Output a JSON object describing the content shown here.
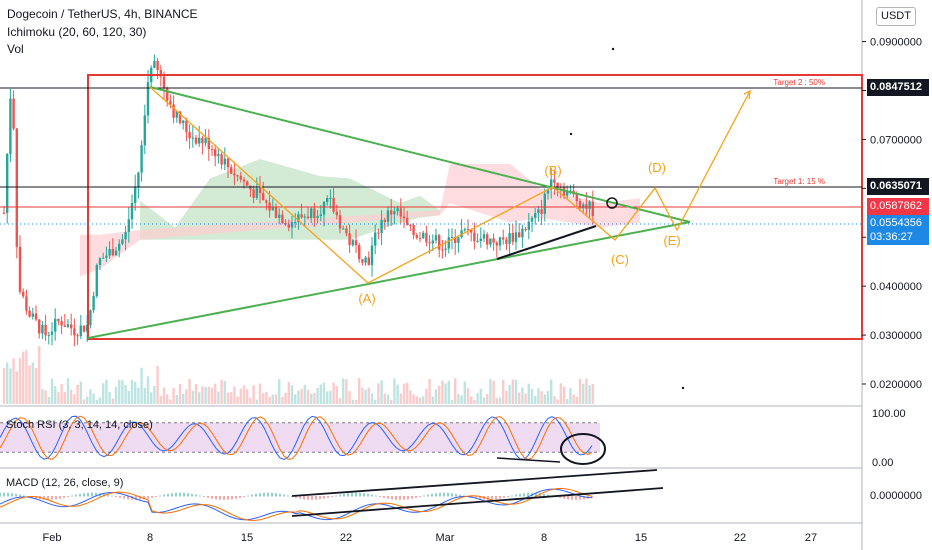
{
  "header": {
    "symbol_line": "Dogecoin / TetherUS, 4h, BINANCE",
    "indicator_1": "Ichimoku (20, 60, 120, 30)",
    "indicator_2": "Vol",
    "currency_button": "USDT"
  },
  "price_tags": {
    "target2_level": "0.0847512",
    "target1_level": "0.0635071",
    "red_level": "0.0587862",
    "last_price": "0.0554356",
    "countdown": "03:36:27"
  },
  "chart_data": {
    "type": "candlestick",
    "price_axis": {
      "range": [
        0.0155,
        0.0985
      ],
      "ticks": [
        "0.0900000",
        "0.0800000",
        "0.0700000",
        "0.0600000",
        "0.0500000",
        "0.0400000",
        "0.0300000",
        "0.0200000"
      ]
    },
    "time_axis": {
      "ticks": [
        "Feb",
        "8",
        "15",
        "22",
        "Mar",
        "8",
        "15",
        "22",
        "27"
      ]
    },
    "annotations": {
      "target_2": "Target 2 : 50%",
      "target_1": "Target 1: 15 %",
      "wave_labels": [
        "(A)",
        "(B)",
        "(C)",
        "(D)",
        "(E)"
      ]
    },
    "stoch_rsi": {
      "label": "Stoch RSI (3, 3, 14, 14, close)",
      "ticks": [
        "100.00",
        "0.00"
      ],
      "band": [
        20,
        80
      ]
    },
    "macd": {
      "label": "MACD (12, 26, close, 9)",
      "ticks": [
        "0.0000000"
      ]
    },
    "colors": {
      "up": "#26a69a",
      "down": "#ef5350",
      "triangle": "#4caf50",
      "wave": "#f7a21b",
      "box": "#e53935",
      "cloud_green": "#c8e6c9",
      "cloud_red": "#ffcdd2",
      "stoch_band": "#e1bee7"
    }
  }
}
